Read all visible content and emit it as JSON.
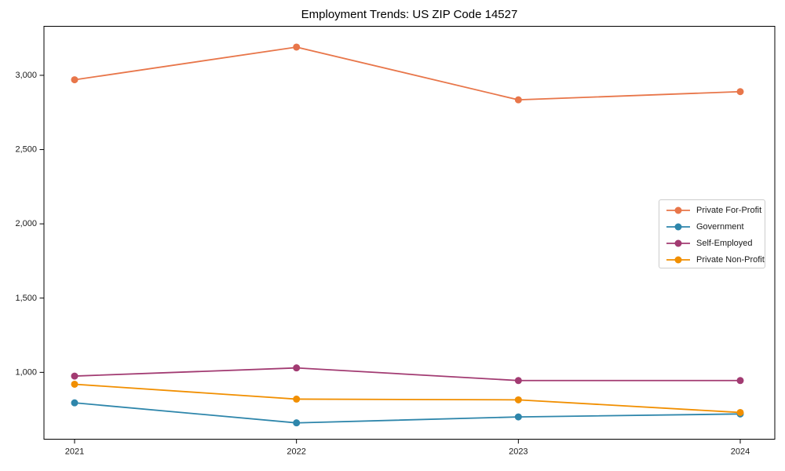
{
  "figure": {
    "background": "#ffffff",
    "axis_color": "#000000",
    "tick_label_color": "#1a1a1a"
  },
  "chart_data": {
    "type": "line",
    "title": "Employment Trends: US ZIP Code 14527",
    "x": [
      "2021",
      "2022",
      "2023",
      "2024"
    ],
    "series": [
      {
        "name": "Private For-Profit",
        "color": "#e8764a",
        "values": [
          2970,
          3190,
          2835,
          2890
        ]
      },
      {
        "name": "Government",
        "color": "#2e86ab",
        "values": [
          795,
          660,
          700,
          720
        ]
      },
      {
        "name": "Self-Employed",
        "color": "#a23b72",
        "values": [
          975,
          1030,
          945,
          945
        ]
      },
      {
        "name": "Private Non-Profit",
        "color": "#f18f01",
        "values": [
          920,
          820,
          815,
          730
        ]
      }
    ],
    "yticks": [
      1000,
      1500,
      2000,
      2500,
      3000
    ],
    "ytick_labels": [
      "1,000",
      "1,500",
      "2,000",
      "2,500",
      "3,000"
    ],
    "ylim": [
      550,
      3330
    ],
    "xlabel": "",
    "ylabel": "",
    "grid": false,
    "legend_position": "center-right",
    "marker": "circle",
    "line_width": 1.8,
    "marker_radius": 4.5
  }
}
